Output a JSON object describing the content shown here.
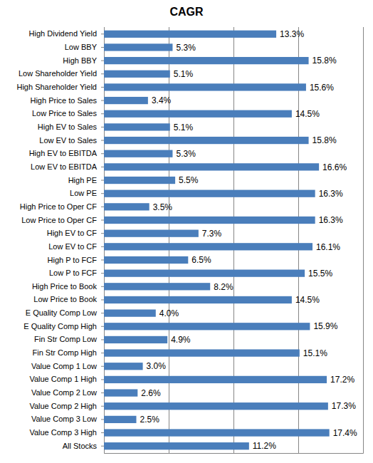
{
  "chart_data": {
    "type": "bar",
    "title": "CAGR",
    "orientation": "horizontal",
    "categories": [
      "High Dividend Yield",
      "Low BBY",
      "High BBY",
      "Low Shareholder Yield",
      "High Shareholder Yield",
      "High Price to Sales",
      "Low Price to Sales",
      "High EV to Sales",
      "Low EV to Sales",
      "High EV to EBITDA",
      "Low EV to EBITDA",
      "High PE",
      "Low PE",
      "High Price to Oper CF",
      "Low Price to Oper CF",
      "High EV to CF",
      "Low EV to CF",
      "High P to FCF",
      "Low P to FCF",
      "High Price to Book",
      "Low Price to Book",
      "E Quality Comp Low",
      "E Quality Comp High",
      "Fin Str Comp Low",
      "Fin Str Comp High",
      "Value Comp 1 Low",
      "Value Comp 1 High",
      "Value Comp 2 Low",
      "Value Comp 2 High",
      "Value Comp 3 Low",
      "Value Comp 3 High",
      "All Stocks"
    ],
    "values": [
      13.3,
      5.3,
      15.8,
      5.1,
      15.6,
      3.4,
      14.5,
      5.1,
      15.8,
      5.3,
      16.6,
      5.5,
      16.3,
      3.5,
      16.3,
      7.3,
      16.1,
      6.5,
      15.5,
      8.2,
      14.5,
      4.0,
      15.9,
      4.9,
      15.1,
      3.0,
      17.2,
      2.6,
      17.3,
      2.5,
      17.4,
      11.2
    ],
    "value_labels": [
      "13.3%",
      "5.3%",
      "15.8%",
      "5.1%",
      "15.6%",
      "3.4%",
      "14.5%",
      "5.1%",
      "15.8%",
      "5.3%",
      "16.6%",
      "5.5%",
      "16.3%",
      "3.5%",
      "16.3%",
      "7.3%",
      "16.1%",
      "6.5%",
      "15.5%",
      "8.2%",
      "14.5%",
      "4.0%",
      "15.9%",
      "4.9%",
      "15.1%",
      "3.0%",
      "17.2%",
      "2.6%",
      "17.3%",
      "2.5%",
      "17.4%",
      "11.2%"
    ],
    "color": "#4a7ebb",
    "xlim": [
      0,
      20
    ],
    "xticks": [
      0,
      5,
      10,
      15,
      20
    ],
    "grid": true,
    "data_labels": true,
    "tick_labels": "y"
  }
}
